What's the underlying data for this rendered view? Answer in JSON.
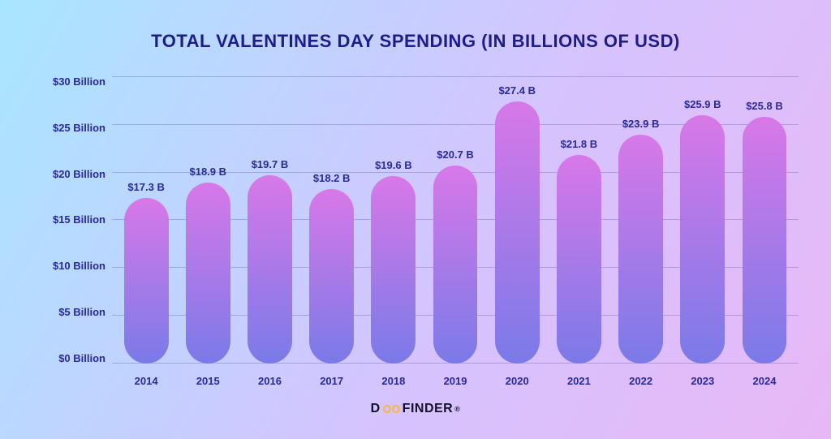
{
  "title": "TOTAL VALENTINES DAY SPENDING (IN BILLIONS OF USD)",
  "title_color": "#1e1b8a",
  "title_fontsize": 22,
  "background_gradient": {
    "from": "#a8e6ff",
    "mid": "#d4c4ff",
    "to": "#e8b8f5"
  },
  "chart": {
    "type": "bar",
    "ylim": [
      0,
      30
    ],
    "ytick_step": 5,
    "yticks": [
      "$30 Billion",
      "$25 Billion",
      "$20 Billion",
      "$15 Billion",
      "$10 Billion",
      "$5 Billion",
      "$0 Billion"
    ],
    "ylabel_color": "#2a2a9a",
    "ylabel_fontsize": 13,
    "grid_color": "rgba(90,90,180,0.35)",
    "xlabel_color": "#2a2a9a",
    "xlabel_fontsize": 13,
    "value_label_color": "#2a2a9a",
    "value_label_fontsize": 13,
    "bar_gradient_top": "#d878e8",
    "bar_gradient_bottom": "#7a7ae8",
    "bar_width_pct": 72,
    "categories": [
      "2014",
      "2015",
      "2016",
      "2017",
      "2018",
      "2019",
      "2020",
      "2021",
      "2022",
      "2023",
      "2024"
    ],
    "values": [
      17.3,
      18.9,
      19.7,
      18.2,
      19.6,
      20.7,
      27.4,
      21.8,
      23.9,
      25.9,
      25.8
    ],
    "value_labels": [
      "$17.3 B",
      "$18.9 B",
      "$19.7 B",
      "$18.2 B",
      "$19.6 B",
      "$20.7 B",
      "$27.4 B",
      "$21.8 B",
      "$23.9 B",
      "$25.9 B",
      "$25.8 B"
    ]
  },
  "logo": {
    "pre": "D",
    "post": "FINDER",
    "o_color": "#f6b73c",
    "text_color": "#12122a",
    "fontsize": 16
  }
}
